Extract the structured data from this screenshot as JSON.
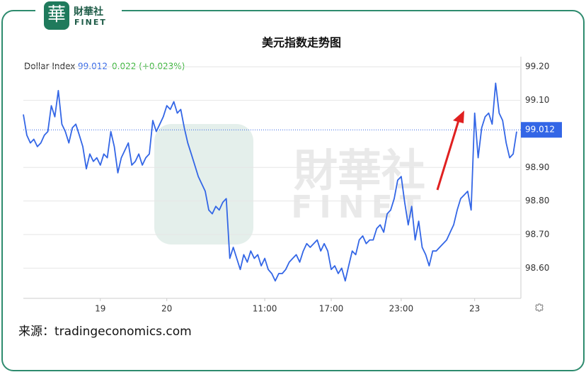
{
  "brand": {
    "icon": "華",
    "name": "財華社",
    "latin": "FINET"
  },
  "watermark": {
    "name": "財華社",
    "latin": "FINET"
  },
  "chart_data": {
    "type": "line",
    "title": "美元指数走势图",
    "series": [
      {
        "name": "Dollar Index",
        "color": "#3366e6",
        "values": [
          99.058,
          98.996,
          98.973,
          98.984,
          98.962,
          98.973,
          98.996,
          99.007,
          99.084,
          99.051,
          99.129,
          99.029,
          99.007,
          98.973,
          99.018,
          99.029,
          98.996,
          98.962,
          98.896,
          98.94,
          98.918,
          98.929,
          98.907,
          98.94,
          98.929,
          99.007,
          98.962,
          98.884,
          98.929,
          98.951,
          98.973,
          98.907,
          98.918,
          98.94,
          98.907,
          98.929,
          98.94,
          99.04,
          99.007,
          99.029,
          99.051,
          99.084,
          99.073,
          99.096,
          99.062,
          99.073,
          99.018,
          98.973,
          98.94,
          98.907,
          98.873,
          98.851,
          98.829,
          98.773,
          98.762,
          98.784,
          98.773,
          98.796,
          98.807,
          98.629,
          98.662,
          98.629,
          98.596,
          98.64,
          98.618,
          98.651,
          98.629,
          98.64,
          98.607,
          98.629,
          98.596,
          98.584,
          98.562,
          98.584,
          98.584,
          98.596,
          98.618,
          98.629,
          98.64,
          98.618,
          98.651,
          98.673,
          98.662,
          98.673,
          98.684,
          98.651,
          98.673,
          98.651,
          98.596,
          98.607,
          98.584,
          98.6,
          98.562,
          98.607,
          98.651,
          98.64,
          98.684,
          98.696,
          98.673,
          98.684,
          98.684,
          98.718,
          98.729,
          98.707,
          98.762,
          98.773,
          98.807,
          98.862,
          98.873,
          98.796,
          98.729,
          98.784,
          98.684,
          98.74,
          98.662,
          98.64,
          98.607,
          98.651,
          98.651,
          98.662,
          98.673,
          98.684,
          98.707,
          98.729,
          98.773,
          98.807,
          98.818,
          98.829,
          98.773,
          99.062,
          98.929,
          99.018,
          99.051,
          99.062,
          99.029,
          99.151,
          99.062,
          99.04,
          98.973,
          98.929,
          98.94,
          99.007
        ]
      }
    ],
    "last_value": 99.012,
    "change_label": "0.022 (+0.023%)",
    "change_color": "#3cb43c",
    "ylim": [
      98.51,
      99.23
    ],
    "yticks": [
      {
        "value": 98.6,
        "label": "98.60"
      },
      {
        "value": 98.7,
        "label": "98.70"
      },
      {
        "value": 98.8,
        "label": "98.80"
      },
      {
        "value": 98.9,
        "label": "98.90"
      },
      {
        "value": 99.1,
        "label": "99.10"
      },
      {
        "value": 99.2,
        "label": "99.20"
      }
    ],
    "xticks": [
      {
        "value": 22,
        "label": "19"
      },
      {
        "value": 41,
        "label": "20"
      },
      {
        "value": 69,
        "label": "11:00"
      },
      {
        "value": 88,
        "label": "17:00"
      },
      {
        "value": 108,
        "label": "23:00"
      },
      {
        "value": 129,
        "label": "23"
      }
    ],
    "grid": true,
    "source": "来源：tradingeconomics.com"
  }
}
